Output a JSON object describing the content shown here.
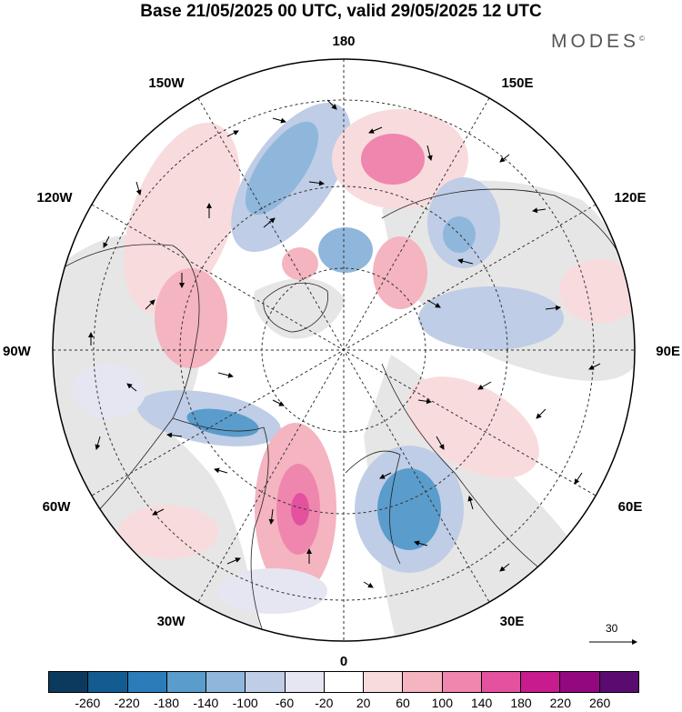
{
  "title": "Base 21/05/2025 00 UTC, valid 29/05/2025 12 UTC",
  "brand": "MODES",
  "brand_mark": "©",
  "longitude_labels": {
    "top": "180",
    "bottom": "0",
    "left": "90W",
    "right": "90E",
    "upper_left": "150W",
    "upper_right": "150E",
    "mid_upper_left": "120W",
    "mid_upper_right": "120E",
    "mid_lower_left": "60W",
    "mid_lower_right": "60E",
    "lower_left": "30W",
    "lower_right": "30E"
  },
  "reference_vector": {
    "label": "30"
  },
  "colorbar": {
    "colors": [
      "#0b3a5e",
      "#135c91",
      "#2b7cb9",
      "#5a9ccb",
      "#8fb7dc",
      "#bfcde6",
      "#e6e6f2",
      "#ffffff",
      "#f8dcdd",
      "#f4b4c0",
      "#ef86ad",
      "#e4519f",
      "#c71b8e",
      "#93087e",
      "#5a0b70"
    ],
    "ticks": [
      "-260",
      "-220",
      "-180",
      "-140",
      "-100",
      "-60",
      "-20",
      "20",
      "60",
      "100",
      "140",
      "180",
      "220",
      "260"
    ]
  },
  "colors": {
    "land_shade": "#e6e6e6",
    "coast": "#222222",
    "grid": "#333333"
  }
}
